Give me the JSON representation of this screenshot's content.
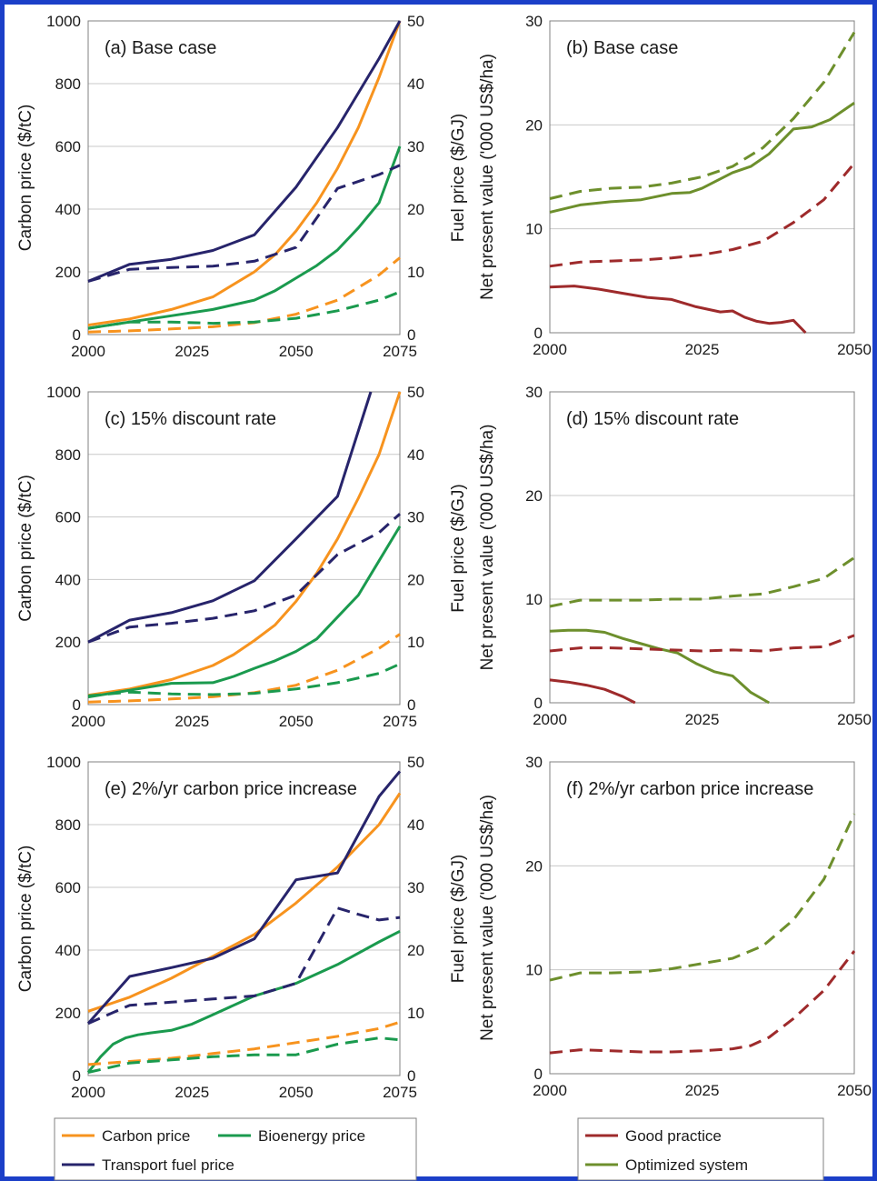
{
  "colors": {
    "carbon": "#f7931e",
    "bioenergy": "#1a9a4e",
    "transport": "#27246b",
    "good": "#9e2a2b",
    "optimized": "#6d8f2c",
    "grid": "#c8c8c8",
    "frame": "#1b3fc8"
  },
  "legend_left": {
    "carbon": "Carbon price",
    "bioenergy": "Bioenergy price",
    "transport": "Transport fuel price"
  },
  "legend_right": {
    "good": "Good practice",
    "optimized": "Optimized system"
  },
  "chart_data": [
    {
      "panel": "a",
      "type": "line",
      "title": "(a) Base case",
      "xlabel": "",
      "ylabel": "Carbon price ($/tC)",
      "y2label": "Fuel price ($/GJ)",
      "xlim": [
        2000,
        2075
      ],
      "ylim": [
        0,
        1000
      ],
      "y2lim": [
        0,
        50
      ],
      "xticks": [
        2000,
        2025,
        2050,
        2075
      ],
      "yticks": [
        0,
        200,
        400,
        600,
        800,
        1000
      ],
      "y2ticks": [
        0,
        10,
        20,
        30,
        40,
        50
      ],
      "grid": true,
      "series": [
        {
          "key": "carbon",
          "style": "solid",
          "axis": "y1",
          "x": [
            2000,
            2010,
            2020,
            2030,
            2040,
            2045,
            2050,
            2055,
            2060,
            2065,
            2070,
            2075
          ],
          "y": [
            30,
            50,
            80,
            120,
            200,
            255,
            330,
            420,
            530,
            660,
            820,
            1000
          ]
        },
        {
          "key": "bioenergy",
          "style": "solid",
          "axis": "y2",
          "x": [
            2000,
            2010,
            2020,
            2030,
            2040,
            2045,
            2050,
            2055,
            2060,
            2065,
            2070,
            2075
          ],
          "y": [
            1,
            2,
            3,
            4,
            5.5,
            7,
            9,
            11,
            13.5,
            17,
            21,
            30
          ]
        },
        {
          "key": "transport",
          "style": "solid",
          "axis": "y2",
          "x": [
            2000,
            2010,
            2020,
            2030,
            2040,
            2050,
            2060,
            2070,
            2075
          ],
          "y": [
            8.5,
            11.2,
            12,
            13.4,
            15.9,
            23.5,
            33,
            44,
            50
          ]
        },
        {
          "key": "carbon",
          "style": "dashed",
          "axis": "y1",
          "x": [
            2000,
            2010,
            2020,
            2030,
            2040,
            2050,
            2060,
            2070,
            2075
          ],
          "y": [
            8,
            12,
            18,
            25,
            38,
            65,
            110,
            190,
            245
          ]
        },
        {
          "key": "bioenergy",
          "style": "dashed",
          "axis": "y2",
          "x": [
            2000,
            2010,
            2020,
            2030,
            2040,
            2050,
            2060,
            2070,
            2075
          ],
          "y": [
            1,
            2,
            2,
            1.8,
            2,
            2.6,
            3.8,
            5.5,
            6.8
          ]
        },
        {
          "key": "transport",
          "style": "dashed",
          "axis": "y2",
          "x": [
            2000,
            2010,
            2020,
            2030,
            2040,
            2050,
            2060,
            2070,
            2075
          ],
          "y": [
            8.5,
            10.4,
            10.7,
            10.9,
            11.7,
            13.9,
            23.3,
            25.5,
            27
          ]
        }
      ]
    },
    {
      "panel": "b",
      "type": "line",
      "title": "(b) Base case",
      "xlabel": "",
      "ylabel": "Net present value ('000 US$/ha)",
      "xlim": [
        2000,
        2050
      ],
      "ylim": [
        0,
        30
      ],
      "xticks": [
        2000,
        2025,
        2050
      ],
      "yticks": [
        0,
        10,
        20,
        30
      ],
      "grid": true,
      "series": [
        {
          "key": "good",
          "style": "solid",
          "x": [
            2000,
            2004,
            2008,
            2012,
            2016,
            2020,
            2024,
            2028,
            2030,
            2032,
            2034,
            2036,
            2038,
            2040,
            2042
          ],
          "y": [
            4.4,
            4.5,
            4.2,
            3.8,
            3.4,
            3.2,
            2.5,
            2.0,
            2.1,
            1.5,
            1.1,
            0.9,
            1.0,
            1.2,
            0
          ]
        },
        {
          "key": "optimized",
          "style": "solid",
          "x": [
            2000,
            2005,
            2010,
            2015,
            2020,
            2023,
            2025,
            2030,
            2033,
            2036,
            2040,
            2043,
            2046,
            2050
          ],
          "y": [
            11.6,
            12.3,
            12.6,
            12.8,
            13.4,
            13.5,
            13.9,
            15.4,
            16,
            17.2,
            19.6,
            19.8,
            20.5,
            22.1
          ]
        },
        {
          "key": "good",
          "style": "dashed",
          "x": [
            2000,
            2005,
            2010,
            2015,
            2020,
            2025,
            2030,
            2035,
            2040,
            2045,
            2050
          ],
          "y": [
            6.4,
            6.8,
            6.9,
            7.0,
            7.2,
            7.5,
            8.0,
            8.8,
            10.6,
            12.8,
            16.3
          ]
        },
        {
          "key": "optimized",
          "style": "dashed",
          "x": [
            2000,
            2005,
            2010,
            2015,
            2020,
            2025,
            2030,
            2035,
            2040,
            2045,
            2050
          ],
          "y": [
            12.9,
            13.6,
            13.9,
            14.0,
            14.4,
            15.0,
            16.0,
            17.8,
            20.6,
            24.1,
            28.9
          ]
        }
      ]
    },
    {
      "panel": "c",
      "type": "line",
      "title": "(c) 15% discount rate",
      "xlabel": "",
      "ylabel": "Carbon price ($/tC)",
      "y2label": "Fuel price ($/GJ)",
      "xlim": [
        2000,
        2075
      ],
      "ylim": [
        0,
        1000
      ],
      "y2lim": [
        0,
        50
      ],
      "xticks": [
        2000,
        2025,
        2050,
        2075
      ],
      "yticks": [
        0,
        200,
        400,
        600,
        800,
        1000
      ],
      "y2ticks": [
        0,
        10,
        20,
        30,
        40,
        50
      ],
      "grid": true,
      "series": [
        {
          "key": "carbon",
          "style": "solid",
          "axis": "y1",
          "x": [
            2000,
            2010,
            2020,
            2030,
            2035,
            2040,
            2045,
            2050,
            2055,
            2060,
            2065,
            2070,
            2075
          ],
          "y": [
            30,
            50,
            80,
            125,
            160,
            205,
            255,
            330,
            420,
            530,
            660,
            800,
            1000
          ]
        },
        {
          "key": "bioenergy",
          "style": "solid",
          "axis": "y2",
          "x": [
            2000,
            2010,
            2020,
            2030,
            2035,
            2040,
            2045,
            2050,
            2055,
            2060,
            2065,
            2070,
            2075
          ],
          "y": [
            1.2,
            2.3,
            3.4,
            3.5,
            4.5,
            5.8,
            7,
            8.5,
            10.5,
            14,
            17.5,
            23,
            28.5
          ]
        },
        {
          "key": "transport",
          "style": "solid",
          "axis": "y2",
          "x": [
            2000,
            2010,
            2020,
            2030,
            2040,
            2050,
            2060,
            2068
          ],
          "y": [
            10,
            13.5,
            14.7,
            16.6,
            19.8,
            26.5,
            33.3,
            50
          ]
        },
        {
          "key": "carbon",
          "style": "dashed",
          "axis": "y1",
          "x": [
            2000,
            2010,
            2020,
            2030,
            2040,
            2050,
            2060,
            2070,
            2075
          ],
          "y": [
            8,
            12,
            18,
            25,
            38,
            62,
            110,
            180,
            225
          ]
        },
        {
          "key": "bioenergy",
          "style": "dashed",
          "axis": "y2",
          "x": [
            2000,
            2010,
            2020,
            2030,
            2040,
            2050,
            2060,
            2070,
            2075
          ],
          "y": [
            1.4,
            2,
            1.7,
            1.6,
            1.8,
            2.5,
            3.5,
            5,
            6.5
          ]
        },
        {
          "key": "transport",
          "style": "dashed",
          "axis": "y2",
          "x": [
            2000,
            2010,
            2020,
            2030,
            2040,
            2050,
            2060,
            2070,
            2075
          ],
          "y": [
            10,
            12.4,
            13,
            13.8,
            15,
            17.5,
            24,
            27.5,
            30.5
          ]
        }
      ]
    },
    {
      "panel": "d",
      "type": "line",
      "title": "(d) 15% discount rate",
      "xlabel": "",
      "ylabel": "Net present value ('000 US$/ha)",
      "xlim": [
        2000,
        2050
      ],
      "ylim": [
        0,
        30
      ],
      "xticks": [
        2000,
        2025,
        2050
      ],
      "yticks": [
        0,
        10,
        20,
        30
      ],
      "grid": true,
      "series": [
        {
          "key": "good",
          "style": "solid",
          "x": [
            2000,
            2003,
            2006,
            2009,
            2012,
            2014
          ],
          "y": [
            2.2,
            2.0,
            1.7,
            1.3,
            0.6,
            0
          ]
        },
        {
          "key": "optimized",
          "style": "solid",
          "x": [
            2000,
            2003,
            2006,
            2009,
            2012,
            2015,
            2018,
            2021,
            2024,
            2027,
            2030,
            2033,
            2036
          ],
          "y": [
            6.9,
            7.0,
            7.0,
            6.8,
            6.2,
            5.7,
            5.2,
            4.8,
            3.8,
            3.0,
            2.6,
            1.0,
            0
          ]
        },
        {
          "key": "good",
          "style": "dashed",
          "x": [
            2000,
            2005,
            2010,
            2015,
            2020,
            2025,
            2030,
            2035,
            2040,
            2045,
            2050
          ],
          "y": [
            5.0,
            5.3,
            5.3,
            5.2,
            5.1,
            5.0,
            5.1,
            5.0,
            5.3,
            5.4,
            6.5
          ]
        },
        {
          "key": "optimized",
          "style": "dashed",
          "x": [
            2000,
            2005,
            2010,
            2015,
            2020,
            2025,
            2030,
            2035,
            2040,
            2045,
            2050
          ],
          "y": [
            9.3,
            9.9,
            9.9,
            9.9,
            10.0,
            10.0,
            10.3,
            10.5,
            11.2,
            12.0,
            14.0
          ]
        }
      ]
    },
    {
      "panel": "e",
      "type": "line",
      "title": "(e) 2%/yr carbon price increase",
      "xlabel": "",
      "ylabel": "Carbon price ($/tC)",
      "y2label": "Fuel price ($/GJ)",
      "xlim": [
        2000,
        2075
      ],
      "ylim": [
        0,
        1000
      ],
      "y2lim": [
        0,
        50
      ],
      "xticks": [
        2000,
        2025,
        2050,
        2075
      ],
      "yticks": [
        0,
        200,
        400,
        600,
        800,
        1000
      ],
      "y2ticks": [
        0,
        10,
        20,
        30,
        40,
        50
      ],
      "grid": true,
      "series": [
        {
          "key": "carbon",
          "style": "solid",
          "axis": "y1",
          "x": [
            2000,
            2010,
            2020,
            2030,
            2040,
            2050,
            2060,
            2070,
            2075
          ],
          "y": [
            205,
            250,
            310,
            380,
            450,
            550,
            665,
            800,
            900
          ]
        },
        {
          "key": "bioenergy",
          "style": "solid",
          "axis": "y2",
          "x": [
            2000,
            2003,
            2006,
            2009,
            2012,
            2015,
            2020,
            2025,
            2030,
            2040,
            2050,
            2060,
            2070,
            2075
          ],
          "y": [
            0.5,
            3,
            5,
            6,
            6.5,
            6.8,
            7.2,
            8.2,
            9.7,
            12.7,
            14.7,
            17.7,
            21.3,
            23
          ]
        },
        {
          "key": "transport",
          "style": "solid",
          "axis": "y2",
          "x": [
            2000,
            2010,
            2020,
            2030,
            2040,
            2050,
            2060,
            2070,
            2075
          ],
          "y": [
            8.3,
            15.8,
            17.2,
            18.7,
            21.8,
            31.2,
            32.3,
            44.5,
            48.5
          ]
        },
        {
          "key": "carbon",
          "style": "dashed",
          "axis": "y1",
          "x": [
            2000,
            2010,
            2020,
            2030,
            2040,
            2050,
            2060,
            2070,
            2075
          ],
          "y": [
            35,
            45,
            55,
            70,
            85,
            105,
            125,
            150,
            170
          ]
        },
        {
          "key": "bioenergy",
          "style": "dashed",
          "axis": "y2",
          "x": [
            2000,
            2010,
            2020,
            2030,
            2040,
            2050,
            2060,
            2070,
            2075
          ],
          "y": [
            0.5,
            2,
            2.5,
            3,
            3.3,
            3.3,
            5,
            6,
            5.7
          ]
        },
        {
          "key": "transport",
          "style": "dashed",
          "axis": "y2",
          "x": [
            2000,
            2010,
            2020,
            2030,
            2040,
            2050,
            2060,
            2065,
            2070,
            2075
          ],
          "y": [
            8.3,
            11.2,
            11.7,
            12.2,
            12.7,
            14.7,
            26.7,
            25.7,
            24.8,
            25.2
          ]
        }
      ]
    },
    {
      "panel": "f",
      "type": "line",
      "title": "(f) 2%/yr carbon price increase",
      "xlabel": "",
      "ylabel": "Net present value ('000 US$/ha)",
      "xlim": [
        2000,
        2050
      ],
      "ylim": [
        0,
        30
      ],
      "xticks": [
        2000,
        2025,
        2050
      ],
      "yticks": [
        0,
        10,
        20,
        30
      ],
      "grid": true,
      "series": [
        {
          "key": "good",
          "style": "dashed",
          "x": [
            2000,
            2005,
            2010,
            2015,
            2020,
            2025,
            2030,
            2033,
            2036,
            2040,
            2045,
            2050
          ],
          "y": [
            2.0,
            2.3,
            2.2,
            2.1,
            2.1,
            2.2,
            2.4,
            2.7,
            3.5,
            5.3,
            8.0,
            11.8
          ]
        },
        {
          "key": "optimized",
          "style": "dashed",
          "x": [
            2000,
            2005,
            2010,
            2015,
            2020,
            2025,
            2030,
            2035,
            2040,
            2045,
            2050
          ],
          "y": [
            9.0,
            9.7,
            9.7,
            9.8,
            10.1,
            10.6,
            11.1,
            12.3,
            14.8,
            18.7,
            25.0
          ]
        }
      ]
    }
  ]
}
